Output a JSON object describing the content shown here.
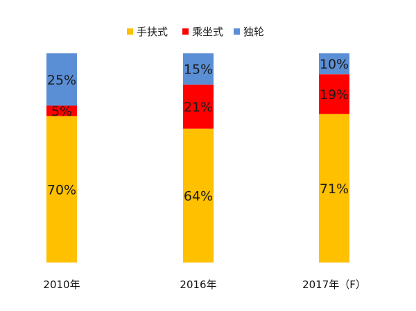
{
  "chart_data": {
    "type": "bar",
    "stacked": true,
    "categories": [
      "2010年",
      "2016年",
      "2017年（F）"
    ],
    "series": [
      {
        "name": "手扶式",
        "color": "#FFC000",
        "values": [
          70,
          64,
          71
        ],
        "labels": [
          "70%",
          "64%",
          "71%"
        ]
      },
      {
        "name": "乘坐式",
        "color": "#FF0000",
        "values": [
          5,
          21,
          19
        ],
        "labels": [
          "5%",
          "21%",
          "19%"
        ]
      },
      {
        "name": "独轮",
        "color": "#5B8FD5",
        "values": [
          25,
          15,
          10
        ],
        "labels": [
          "25%",
          "15%",
          "10%"
        ]
      }
    ],
    "ylim": [
      0,
      100
    ],
    "grid": false,
    "legend_position": "top"
  }
}
